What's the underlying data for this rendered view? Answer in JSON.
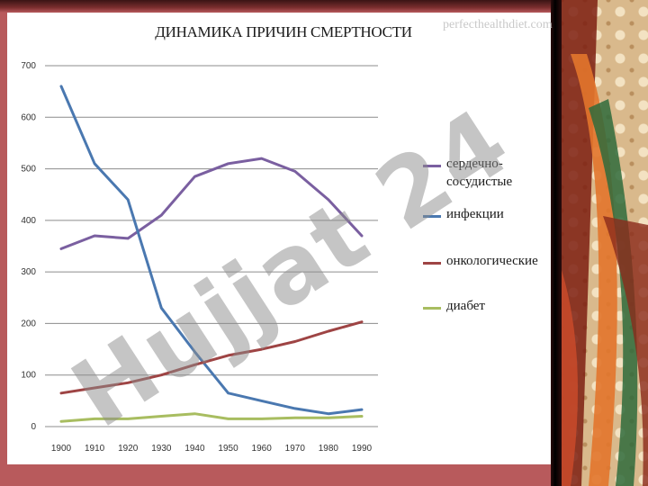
{
  "slide": {
    "title": "ДИНАМИКА ПРИЧИН СМЕРТНОСТИ",
    "source_watermark": "perfecthealthdiet.com",
    "overlay_watermark": "Hujjat 24"
  },
  "colors": {
    "background": "#b85a5c",
    "slide": "#ffffff",
    "grid": "#8c8c8c",
    "watermark_gray": "#8c8c8c",
    "watermark_violet": "#c7a6dc"
  },
  "chart_data": {
    "type": "line",
    "title": "ДИНАМИКА ПРИЧИН СМЕРТНОСТИ",
    "xlabel": "",
    "ylabel": "",
    "x": [
      1900,
      1910,
      1920,
      1930,
      1940,
      1950,
      1960,
      1970,
      1980,
      1990
    ],
    "ylim": [
      0,
      700
    ],
    "yticks": [
      0,
      100,
      200,
      300,
      400,
      500,
      600,
      700
    ],
    "grid": true,
    "legend_position": "right",
    "series": [
      {
        "name": "сердечно-сосудистые",
        "color": "#7a5fa0",
        "values": [
          345,
          370,
          365,
          410,
          485,
          510,
          520,
          495,
          440,
          370
        ]
      },
      {
        "name": "инфекции",
        "color": "#4a78b0",
        "values": [
          660,
          510,
          440,
          230,
          145,
          65,
          50,
          35,
          25,
          33
        ]
      },
      {
        "name": "онкологические",
        "color": "#9e4444",
        "values": [
          65,
          75,
          85,
          100,
          120,
          138,
          150,
          165,
          185,
          203
        ]
      },
      {
        "name": "диабет",
        "color": "#a8bd60",
        "values": [
          10,
          15,
          15,
          20,
          25,
          15,
          15,
          17,
          17,
          20
        ]
      }
    ]
  }
}
